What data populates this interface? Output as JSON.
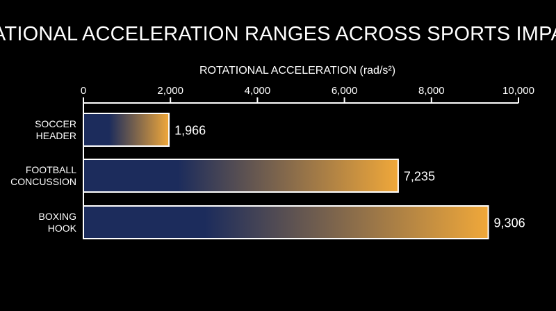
{
  "chart_data": {
    "type": "bar",
    "orientation": "horizontal",
    "title": "ROTATIONAL ACCELERATION RANGES ACROSS SPORTS IMPACTS",
    "xlabel": "ROTATIONAL ACCELERATION (rad/s²)",
    "ylabel": "",
    "xlim": [
      0,
      10000
    ],
    "x_axis_position": "top",
    "x_ticks": [
      0,
      2000,
      4000,
      6000,
      8000,
      10000
    ],
    "x_tick_labels": [
      "0",
      "2,000",
      "4,000",
      "6,000",
      "8,000",
      "10,000"
    ],
    "grid": false,
    "legend": "none",
    "categories": [
      [
        "SOCCER",
        "HEADER"
      ],
      [
        "FOOTBALL",
        "CONCUSSION"
      ],
      [
        "BOXING",
        "HOOK"
      ]
    ],
    "values": [
      1966,
      7235,
      9306
    ],
    "value_labels": [
      "1,966",
      "7,235",
      "9,306"
    ],
    "colors": {
      "background": "#000000",
      "text": "#ffffff",
      "bar_gradient_start": "#1c2c5c",
      "bar_gradient_end": "#f0a83a",
      "bar_outline": "#ffffff"
    }
  }
}
